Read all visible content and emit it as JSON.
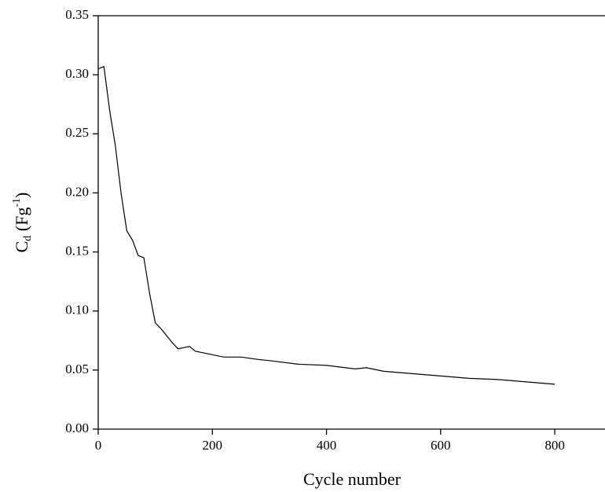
{
  "chart_data": {
    "type": "line",
    "x_label": "Cycle number",
    "y_label": [
      "C",
      "d",
      " (Fg",
      "-1",
      ")"
    ],
    "x": [
      0,
      10,
      20,
      30,
      40,
      50,
      60,
      70,
      80,
      90,
      100,
      110,
      120,
      130,
      140,
      150,
      160,
      170,
      180,
      200,
      220,
      250,
      280,
      300,
      350,
      400,
      450,
      470,
      500,
      550,
      600,
      650,
      700,
      750,
      800
    ],
    "series": [
      {
        "color": "#000000",
        "values": [
          0.305,
          0.307,
          0.27,
          0.24,
          0.2,
          0.168,
          0.16,
          0.147,
          0.145,
          0.115,
          0.09,
          0.085,
          0.079,
          0.073,
          0.068,
          0.069,
          0.07,
          0.066,
          0.065,
          0.063,
          0.061,
          0.061,
          0.059,
          0.058,
          0.055,
          0.054,
          0.051,
          0.052,
          0.049,
          0.047,
          0.045,
          0.043,
          0.042,
          0.04,
          0.038
        ]
      }
    ],
    "xlim": [
      0,
      888
    ],
    "xticks": [
      0,
      200,
      400,
      600,
      800
    ],
    "ylim": [
      0,
      0.35
    ],
    "yticks": [
      {
        "value": 0,
        "label": "0.00"
      },
      {
        "value": 0.05,
        "label": "0.05"
      },
      {
        "value": 0.1,
        "label": "0.10"
      },
      {
        "value": 0.15,
        "label": "0.15"
      },
      {
        "value": 0.2,
        "label": "0.20"
      },
      {
        "value": 0.25,
        "label": "0.25"
      },
      {
        "value": 0.3,
        "label": "0.30"
      },
      {
        "value": 0.35,
        "label": "0.35"
      }
    ]
  }
}
